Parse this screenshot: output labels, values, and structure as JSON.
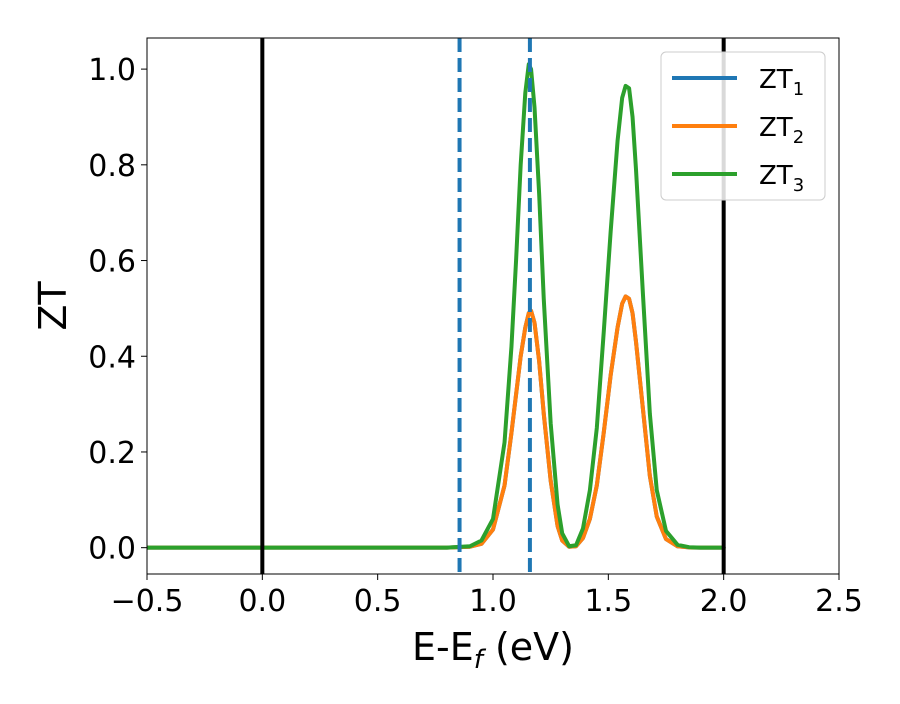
{
  "chart_data": {
    "type": "line",
    "title": "",
    "xlabel": {
      "main": "E-E",
      "sub": "f",
      "suffix": " (eV)"
    },
    "ylabel": "ZT",
    "xlim": [
      -0.5,
      2.5
    ],
    "ylim": [
      -0.055,
      1.065
    ],
    "grid": false,
    "legend_position": "top-right",
    "x_ticks": [
      -0.5,
      0.0,
      0.5,
      1.0,
      1.5,
      2.0,
      2.5
    ],
    "x_tick_labels": [
      "−0.5",
      "0.0",
      "0.5",
      "1.0",
      "1.5",
      "2.0",
      "2.5"
    ],
    "y_ticks": [
      0.0,
      0.2,
      0.4,
      0.6,
      0.8,
      1.0
    ],
    "y_tick_labels": [
      "0.0",
      "0.2",
      "0.4",
      "0.6",
      "0.8",
      "1.0"
    ],
    "reference_lines": [
      {
        "x": 0.0,
        "color": "#000000",
        "style": "solid"
      },
      {
        "x": 2.0,
        "color": "#000000",
        "style": "solid"
      },
      {
        "x": 0.855,
        "color": "#1f77b4",
        "style": "dashed"
      },
      {
        "x": 1.16,
        "color": "#1f77b4",
        "style": "dashed"
      }
    ],
    "x": [
      -0.5,
      0.8,
      0.9,
      0.95,
      1.0,
      1.05,
      1.08,
      1.1,
      1.12,
      1.14,
      1.155,
      1.165,
      1.18,
      1.2,
      1.22,
      1.25,
      1.28,
      1.3,
      1.33,
      1.36,
      1.39,
      1.42,
      1.45,
      1.48,
      1.51,
      1.54,
      1.56,
      1.575,
      1.59,
      1.605,
      1.62,
      1.65,
      1.68,
      1.71,
      1.75,
      1.8,
      1.85,
      1.9,
      2.0
    ],
    "series": [
      {
        "name": "ZT₁",
        "label_main": "ZT",
        "label_sub": "1",
        "color": "#1f77b4",
        "values": [
          0,
          0,
          0.002,
          0.008,
          0.038,
          0.13,
          0.24,
          0.32,
          0.4,
          0.46,
          0.49,
          0.495,
          0.47,
          0.39,
          0.28,
          0.14,
          0.045,
          0.015,
          0.002,
          0.003,
          0.02,
          0.06,
          0.13,
          0.24,
          0.36,
          0.46,
          0.51,
          0.525,
          0.52,
          0.49,
          0.43,
          0.29,
          0.15,
          0.065,
          0.018,
          0.003,
          0.0005,
          0,
          0
        ]
      },
      {
        "name": "ZT₂",
        "label_main": "ZT",
        "label_sub": "2",
        "color": "#ff7f0e",
        "values": [
          0,
          0,
          0.002,
          0.008,
          0.038,
          0.13,
          0.24,
          0.32,
          0.4,
          0.46,
          0.49,
          0.495,
          0.47,
          0.39,
          0.28,
          0.14,
          0.045,
          0.015,
          0.002,
          0.003,
          0.02,
          0.06,
          0.13,
          0.24,
          0.36,
          0.46,
          0.51,
          0.525,
          0.52,
          0.49,
          0.43,
          0.29,
          0.15,
          0.065,
          0.018,
          0.003,
          0.0005,
          0,
          0
        ]
      },
      {
        "name": "ZT₃",
        "label_main": "ZT",
        "label_sub": "3",
        "color": "#2ca02c",
        "values": [
          0,
          0,
          0.003,
          0.015,
          0.06,
          0.22,
          0.42,
          0.6,
          0.8,
          0.95,
          1.01,
          1.0,
          0.92,
          0.74,
          0.52,
          0.26,
          0.09,
          0.03,
          0.003,
          0.005,
          0.04,
          0.12,
          0.25,
          0.45,
          0.66,
          0.85,
          0.94,
          0.965,
          0.96,
          0.9,
          0.79,
          0.53,
          0.28,
          0.12,
          0.035,
          0.006,
          0.001,
          0,
          0
        ]
      }
    ]
  }
}
